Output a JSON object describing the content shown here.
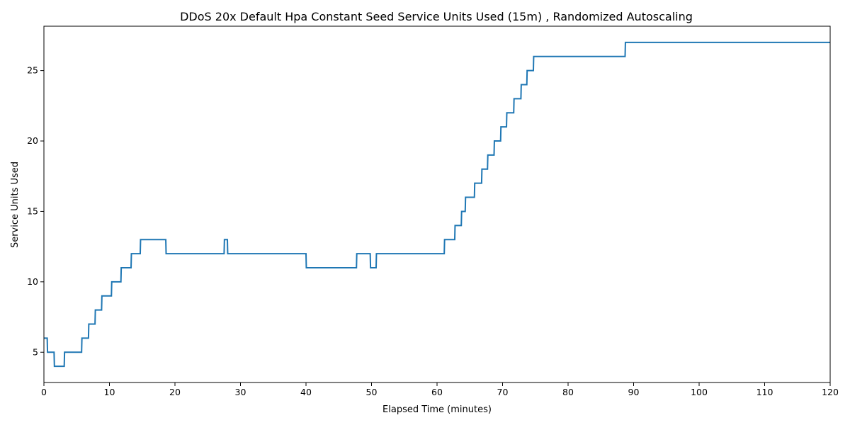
{
  "chart_data": {
    "type": "line",
    "title": "DDoS 20x Default Hpa Constant Seed Service Units Used (15m) , Randomized Autoscaling",
    "xlabel": "Elapsed Time (minutes)",
    "ylabel": "Service Units Used",
    "xlim": [
      0,
      120
    ],
    "ylim": [
      2.85,
      28.15
    ],
    "xticks": [
      0,
      10,
      20,
      30,
      40,
      50,
      60,
      70,
      80,
      90,
      100,
      110,
      120
    ],
    "yticks": [
      5,
      10,
      15,
      20,
      25
    ],
    "grid": false,
    "legend": "none",
    "colors": {
      "line": "#1f77b4",
      "axes": "#000000"
    },
    "series": [
      {
        "x": [
          0,
          0.5,
          0.55,
          1.55,
          1.6,
          3.1,
          3.15,
          5.75,
          5.8,
          6.8,
          6.85,
          7.8,
          7.85,
          8.8,
          8.85,
          10.3,
          10.35,
          11.75,
          11.8,
          13.3,
          13.35,
          14.7,
          14.75,
          18.6,
          18.65,
          27.5,
          27.55,
          28.0,
          28.05,
          40.0,
          40.05,
          47.7,
          47.75,
          49.8,
          49.85,
          50.7,
          50.75,
          61.1,
          61.15,
          62.7,
          62.75,
          63.7,
          63.75,
          64.3,
          64.35,
          65.7,
          65.75,
          66.8,
          66.85,
          67.7,
          67.75,
          68.7,
          68.75,
          69.7,
          69.75,
          70.6,
          70.65,
          71.7,
          71.75,
          72.8,
          72.85,
          73.7,
          73.75,
          74.7,
          74.75,
          88.7,
          88.75,
          120
        ],
        "y": [
          6,
          6,
          5,
          5,
          4,
          4,
          5,
          5,
          6,
          6,
          7,
          7,
          8,
          8,
          9,
          9,
          10,
          10,
          11,
          11,
          12,
          12,
          13,
          13,
          12,
          12,
          13,
          13,
          12,
          12,
          11,
          11,
          12,
          12,
          11,
          11,
          12,
          12,
          13,
          13,
          14,
          14,
          15,
          15,
          16,
          16,
          17,
          17,
          18,
          18,
          19,
          19,
          20,
          20,
          21,
          21,
          22,
          22,
          23,
          23,
          24,
          24,
          25,
          25,
          26,
          26,
          27,
          27
        ]
      }
    ]
  }
}
